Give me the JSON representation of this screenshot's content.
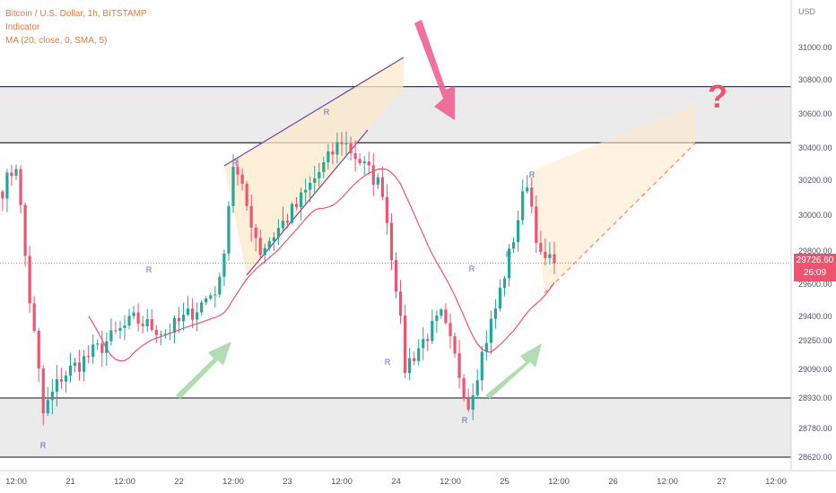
{
  "legend": {
    "symbol": "Bitcoin / U.S. Dollar, 1h, BITSTAMP",
    "indicator": "Indicator",
    "ma": "MA (20, close, 0, SMA, 5)"
  },
  "axis": {
    "currency": "USD",
    "y_ticks": [
      "31000.00",
      "30800.00",
      "30600.00",
      "30400.00",
      "30200.00",
      "30000.00",
      "29800.00",
      "29600.00",
      "29400.00",
      "29250.00",
      "29090.00",
      "28930.00",
      "28780.00",
      "28620.00"
    ],
    "x_ticks": [
      "12:00",
      "21",
      "12:00",
      "22",
      "12:00",
      "23",
      "12:00",
      "24",
      "12:00",
      "25",
      "12:00",
      "26",
      "12:00",
      "27",
      "12:00"
    ]
  },
  "last_price": {
    "price": "29726.60",
    "countdown": "26:09"
  },
  "annotation": {
    "question_mark": "?",
    "r_label": "R"
  },
  "colors": {
    "up": "#26a69a",
    "down": "#ef5370",
    "ma": "#ef5370",
    "zone": "#ebebeb",
    "wedge_fill": "#fde9cc",
    "green_arrow": "#a5d6a7",
    "pink_arrow": "#f06292",
    "question": "#ef5370"
  },
  "chart_data": {
    "type": "candlestick",
    "title": "Bitcoin / U.S. Dollar, 1h, BITSTAMP",
    "ylabel": "USD",
    "ylim": [
      28560,
      31250
    ],
    "x_range": [
      "2022-08-20 10:00",
      "2022-08-27 12:00"
    ],
    "support_zone": [
      28620,
      28930
    ],
    "resistance_zone": [
      30430,
      30760
    ],
    "anchor_points": [
      {
        "t": "2022-08-20 09:00",
        "close": 30150
      },
      {
        "t": "2022-08-20 12:00",
        "close": 30300
      },
      {
        "t": "2022-08-20 15:00",
        "close": 29500
      },
      {
        "t": "2022-08-20 18:00",
        "close": 28850
      },
      {
        "t": "2022-08-20 22:00",
        "close": 29050
      },
      {
        "t": "2022-08-21 06:00",
        "close": 29200
      },
      {
        "t": "2022-08-21 14:00",
        "close": 29380
      },
      {
        "t": "2022-08-21 21:00",
        "close": 29300
      },
      {
        "t": "2022-08-22 04:00",
        "close": 29450
      },
      {
        "t": "2022-08-22 09:00",
        "close": 29600
      },
      {
        "t": "2022-08-22 12:00",
        "close": 30300
      },
      {
        "t": "2022-08-22 18:00",
        "close": 29800
      },
      {
        "t": "2022-08-23 02:00",
        "close": 30050
      },
      {
        "t": "2022-08-23 12:00",
        "close": 30450
      },
      {
        "t": "2022-08-23 21:00",
        "close": 30150
      },
      {
        "t": "2022-08-24 00:00",
        "close": 29600
      },
      {
        "t": "2022-08-24 02:00",
        "close": 29100
      },
      {
        "t": "2022-08-24 10:00",
        "close": 29400
      },
      {
        "t": "2022-08-24 16:00",
        "close": 28900
      },
      {
        "t": "2022-08-24 22:00",
        "close": 29450
      },
      {
        "t": "2022-08-25 05:00",
        "close": 30200
      },
      {
        "t": "2022-08-25 08:00",
        "close": 29750
      },
      {
        "t": "2022-08-25 11:00",
        "close": 29726.6
      }
    ]
  }
}
